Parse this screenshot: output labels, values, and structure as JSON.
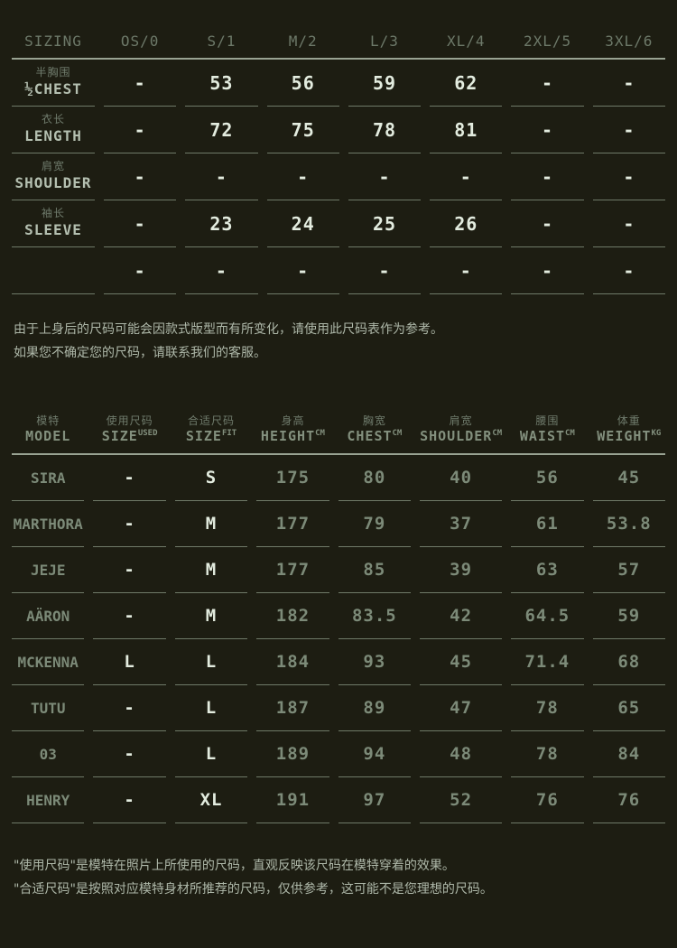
{
  "colors": {
    "background": "#1d1d12",
    "bright_value": "#e3ecdf",
    "dim_value": "#7c8a78",
    "header_text": "#6d7969",
    "label_en": "#b4bfb0",
    "header_rule": "#99a392",
    "cell_rule": "#6f7a68",
    "note_text": "#aeb8a9"
  },
  "sizing_table": {
    "headers": [
      "SIZING",
      "OS/0",
      "S/1",
      "M/2",
      "L/3",
      "XL/4",
      "2XL/5",
      "3XL/6"
    ],
    "rows": [
      {
        "zh": "半胸围",
        "en": "½CHEST",
        "values": [
          "-",
          "53",
          "56",
          "59",
          "62",
          "-",
          "-"
        ]
      },
      {
        "zh": "衣长",
        "en": "LENGTH",
        "values": [
          "-",
          "72",
          "75",
          "78",
          "81",
          "-",
          "-"
        ]
      },
      {
        "zh": "肩宽",
        "en": "SHOULDER",
        "values": [
          "-",
          "-",
          "-",
          "-",
          "-",
          "-",
          "-"
        ]
      },
      {
        "zh": "袖长",
        "en": "SLEEVE",
        "values": [
          "-",
          "23",
          "24",
          "25",
          "26",
          "-",
          "-"
        ]
      },
      {
        "zh": "",
        "en": "",
        "values": [
          "-",
          "-",
          "-",
          "-",
          "-",
          "-",
          "-"
        ]
      }
    ]
  },
  "size_note": {
    "line1": "由于上身后的尺码可能会因款式版型而有所变化，请使用此尺码表作为参考。",
    "line2": "如果您不确定您的尺码，请联系我们的客服。"
  },
  "model_table": {
    "headers": [
      {
        "zh": "模特",
        "en": "MODEL",
        "sup": ""
      },
      {
        "zh": "使用尺码",
        "en": "SIZE",
        "sup": "USED"
      },
      {
        "zh": "合适尺码",
        "en": "SIZE",
        "sup": "FIT"
      },
      {
        "zh": "身高",
        "en": "HEIGHT",
        "sup": "CM"
      },
      {
        "zh": "胸宽",
        "en": "CHEST",
        "sup": "CM"
      },
      {
        "zh": "肩宽",
        "en": "SHOULDER",
        "sup": "CM"
      },
      {
        "zh": "腰围",
        "en": "WAIST",
        "sup": "CM"
      },
      {
        "zh": "体重",
        "en": "WEIGHT",
        "sup": "KG"
      }
    ],
    "rows": [
      {
        "model": "SIRA",
        "used": "-",
        "fit": "S",
        "height": "175",
        "chest": "80",
        "shoulder": "40",
        "waist": "56",
        "weight": "45"
      },
      {
        "model": "MARTHORA",
        "used": "-",
        "fit": "M",
        "height": "177",
        "chest": "79",
        "shoulder": "37",
        "waist": "61",
        "weight": "53.8"
      },
      {
        "model": "JEJE",
        "used": "-",
        "fit": "M",
        "height": "177",
        "chest": "85",
        "shoulder": "39",
        "waist": "63",
        "weight": "57"
      },
      {
        "model": "AÄRON",
        "used": "-",
        "fit": "M",
        "height": "182",
        "chest": "83.5",
        "shoulder": "42",
        "waist": "64.5",
        "weight": "59"
      },
      {
        "model": "MCKENNA",
        "used": "L",
        "fit": "L",
        "height": "184",
        "chest": "93",
        "shoulder": "45",
        "waist": "71.4",
        "weight": "68"
      },
      {
        "model": "TUTU",
        "used": "-",
        "fit": "L",
        "height": "187",
        "chest": "89",
        "shoulder": "47",
        "waist": "78",
        "weight": "65"
      },
      {
        "model": "03",
        "used": "-",
        "fit": "L",
        "height": "189",
        "chest": "94",
        "shoulder": "48",
        "waist": "78",
        "weight": "84"
      },
      {
        "model": "HENRY",
        "used": "-",
        "fit": "XL",
        "height": "191",
        "chest": "97",
        "shoulder": "52",
        "waist": "76",
        "weight": "76"
      }
    ]
  },
  "footnotes": {
    "line1": "\"使用尺码\"是模特在照片上所使用的尺码，直观反映该尺码在模特穿着的效果。",
    "line2": "\"合适尺码\"是按照对应模特身材所推荐的尺码，仅供参考，这可能不是您理想的尺码。"
  }
}
